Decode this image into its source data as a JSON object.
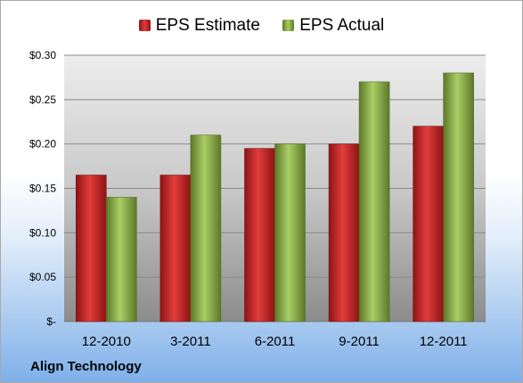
{
  "company": "Align Technology",
  "colors": {
    "estimate": "#d42a2a",
    "actual": "#8fb04a"
  },
  "chart_data": {
    "type": "bar",
    "categories": [
      "12-2010",
      "3-2011",
      "6-2011",
      "9-2011",
      "12-2011"
    ],
    "series": [
      {
        "name": "EPS Estimate",
        "values": [
          0.165,
          0.165,
          0.195,
          0.2,
          0.22
        ]
      },
      {
        "name": "EPS Actual",
        "values": [
          0.14,
          0.21,
          0.2,
          0.27,
          0.28
        ]
      }
    ],
    "ylim": [
      0,
      0.3
    ],
    "yticks": [
      0,
      0.05,
      0.1,
      0.15,
      0.2,
      0.25,
      0.3
    ],
    "ytick_labels": [
      "$-",
      "$0.05",
      "$0.10",
      "$0.15",
      "$0.20",
      "$0.25",
      "$0.30"
    ],
    "legend_position": "top-center",
    "grid": true
  }
}
